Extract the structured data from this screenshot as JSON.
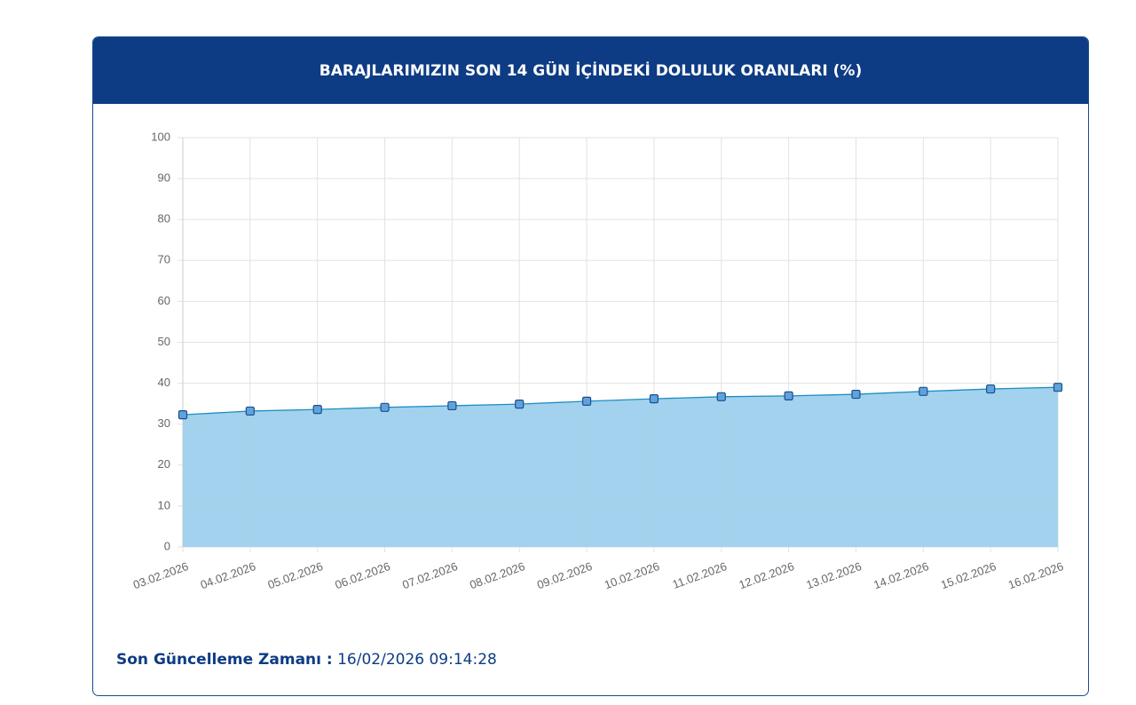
{
  "chart_data": {
    "type": "area",
    "title": "BARAJLARIMIZIN SON 14 GÜN İÇİNDEKİ DOLULUK ORANLARI (%)",
    "categories": [
      "03.02.2026",
      "04.02.2026",
      "05.02.2026",
      "06.02.2026",
      "07.02.2026",
      "08.02.2026",
      "09.02.2026",
      "10.02.2026",
      "11.02.2026",
      "12.02.2026",
      "13.02.2026",
      "14.02.2026",
      "15.02.2026",
      "16.02.2026"
    ],
    "values": [
      32.3,
      33.2,
      33.6,
      34.1,
      34.5,
      34.9,
      35.6,
      36.2,
      36.7,
      36.9,
      37.3,
      38.0,
      38.6,
      39.0
    ],
    "color": "#1f8dc4",
    "fill": "#9dd0ec",
    "marker_color": "#5fa3dd",
    "ylim": [
      0,
      100
    ],
    "yticks": [
      0,
      10,
      20,
      30,
      40,
      50,
      60,
      70,
      80,
      90,
      100
    ],
    "grid": true
  },
  "footer": {
    "label": "Son Güncelleme Zamanı :",
    "value": "16/02/2026 09:14:28"
  }
}
